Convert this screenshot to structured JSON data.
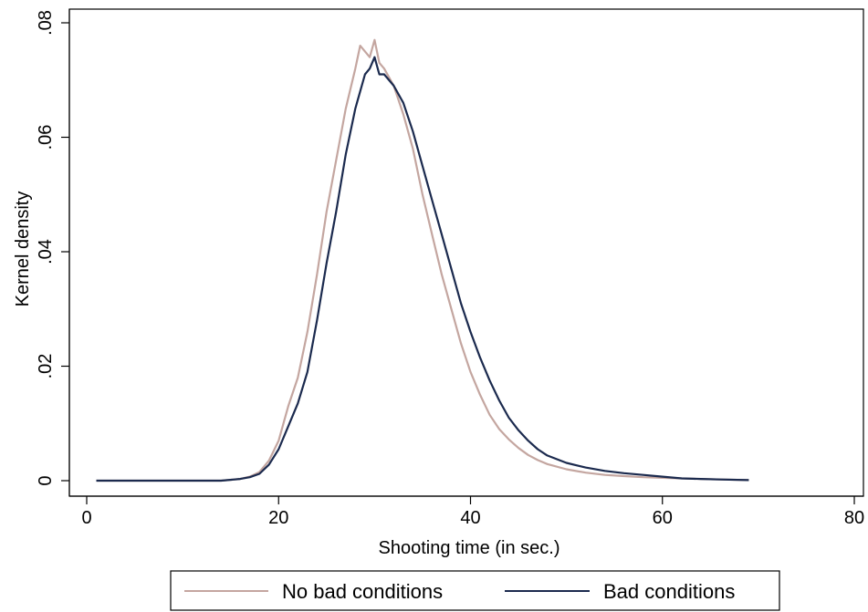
{
  "chart_data": {
    "type": "line",
    "title": "",
    "xlabel": "Shooting time (in sec.)",
    "ylabel": "Kernel density",
    "xlim": [
      0,
      80
    ],
    "ylim": [
      0,
      0.08
    ],
    "x_ticks": [
      0,
      20,
      40,
      60,
      80
    ],
    "x_tick_labels": [
      "0",
      "20",
      "40",
      "60",
      "80"
    ],
    "y_ticks": [
      0,
      0.02,
      0.04,
      0.06,
      0.08
    ],
    "y_tick_labels": [
      "0",
      ".02",
      ".04",
      ".06",
      ".08"
    ],
    "grid": false,
    "legend_position": "bottom",
    "series": [
      {
        "name": "No bad conditions",
        "color": "#c4a6a0",
        "x": [
          1,
          5,
          10,
          14,
          16,
          17,
          18,
          19,
          20,
          21,
          22,
          23,
          24,
          25,
          26,
          27,
          28,
          28.5,
          29,
          29.5,
          30,
          30.5,
          31,
          32,
          33,
          34,
          35,
          36,
          37,
          38,
          39,
          40,
          41,
          42,
          43,
          44,
          45,
          46,
          47,
          48,
          50,
          52,
          54,
          56,
          58,
          60,
          62,
          64,
          66,
          69
        ],
        "values": [
          0,
          0,
          0,
          0,
          0.0003,
          0.0007,
          0.0015,
          0.0035,
          0.007,
          0.013,
          0.018,
          0.026,
          0.036,
          0.047,
          0.056,
          0.065,
          0.072,
          0.076,
          0.075,
          0.074,
          0.077,
          0.073,
          0.072,
          0.069,
          0.064,
          0.058,
          0.05,
          0.043,
          0.036,
          0.03,
          0.024,
          0.019,
          0.015,
          0.0115,
          0.009,
          0.0072,
          0.0057,
          0.0045,
          0.0036,
          0.0029,
          0.002,
          0.0014,
          0.001,
          0.0008,
          0.0006,
          0.0005,
          0.0004,
          0.0003,
          0.0002,
          0.0001
        ]
      },
      {
        "name": "Bad conditions",
        "color": "#1b2a4e",
        "x": [
          1,
          5,
          10,
          14,
          16,
          17,
          18,
          19,
          20,
          21,
          22,
          23,
          24,
          25,
          26,
          27,
          28,
          29,
          29.5,
          30,
          30.5,
          31,
          32,
          33,
          34,
          35,
          36,
          37,
          38,
          39,
          40,
          41,
          42,
          43,
          44,
          45,
          46,
          47,
          48,
          50,
          52,
          54,
          56,
          58,
          60,
          62,
          64,
          66,
          69
        ],
        "values": [
          0,
          0,
          0,
          0,
          0.0003,
          0.0006,
          0.0012,
          0.0028,
          0.0055,
          0.0095,
          0.0135,
          0.019,
          0.028,
          0.038,
          0.047,
          0.057,
          0.065,
          0.071,
          0.072,
          0.074,
          0.071,
          0.071,
          0.069,
          0.066,
          0.061,
          0.055,
          0.049,
          0.043,
          0.037,
          0.031,
          0.026,
          0.0215,
          0.0175,
          0.014,
          0.011,
          0.0088,
          0.007,
          0.0055,
          0.0044,
          0.0031,
          0.0023,
          0.0017,
          0.0013,
          0.001,
          0.0007,
          0.0004,
          0.0003,
          0.0002,
          0.0001
        ]
      }
    ]
  }
}
